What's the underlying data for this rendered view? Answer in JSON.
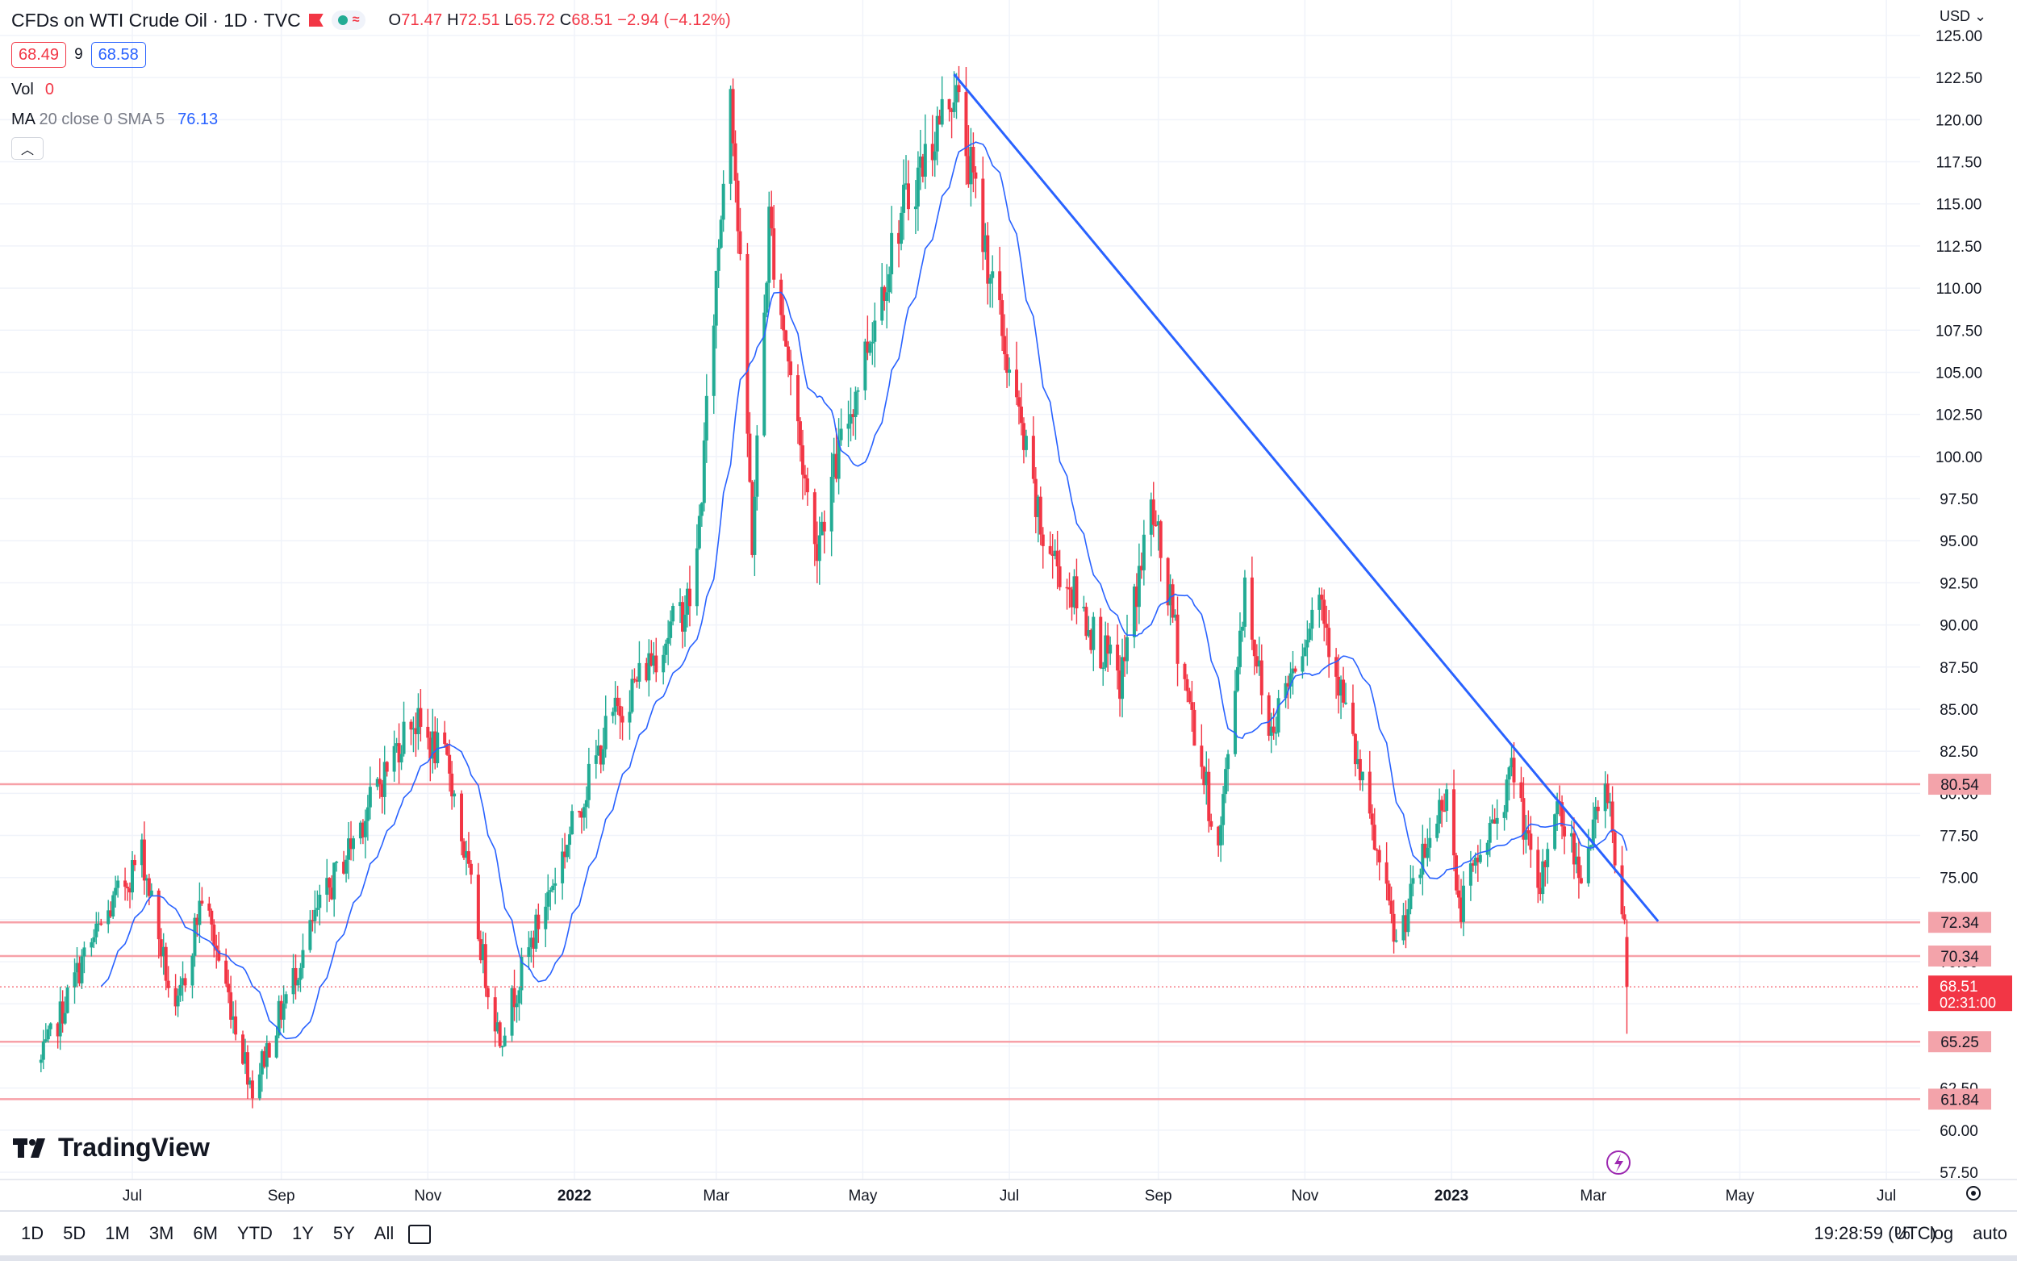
{
  "header": {
    "title": "CFDs on WTI Crude Oil · 1D · TVC",
    "ohlc": [
      {
        "label": "O",
        "value": "71.47"
      },
      {
        "label": "H",
        "value": "72.51"
      },
      {
        "label": "L",
        "value": "65.72"
      },
      {
        "label": "C",
        "value": "68.51"
      }
    ],
    "change": "−2.94 (−4.12%)",
    "bid": "68.49",
    "spread": "9",
    "ask": "68.58",
    "vol_label": "Vol",
    "vol_value": "0",
    "ma_label": "MA",
    "ma_params": "20 close 0 SMA 5",
    "ma_value": "76.13",
    "collapse_icon": "chevron-up-icon"
  },
  "currency": "USD",
  "logo_text": "TradingView",
  "timeframes": [
    "1D",
    "5D",
    "1M",
    "3M",
    "6M",
    "YTD",
    "1Y",
    "5Y",
    "All"
  ],
  "clock": "19:28:59 (UTC)",
  "right_tools": [
    "%",
    "log",
    "auto"
  ],
  "colors": {
    "up": "#22ab94",
    "down": "#f23645",
    "ma": "#2962ff",
    "trend": "#2962ff",
    "level": "#f7a1a8",
    "level_label": "#f3a3aa"
  },
  "chart_data": {
    "type": "candlestick",
    "symbol": "CFDs on WTI Crude Oil",
    "interval": "1D",
    "y_axis": {
      "unit": "USD",
      "min": 57.5,
      "max": 125,
      "step": 2.5,
      "ticks": [
        "57.50",
        "60.00",
        "62.50",
        "65.00",
        "67.50",
        "70.00",
        "72.50",
        "75.00",
        "77.50",
        "80.00",
        "82.50",
        "85.00",
        "87.50",
        "90.00",
        "92.50",
        "95.00",
        "97.50",
        "100.00",
        "102.50",
        "105.00",
        "107.50",
        "110.00",
        "112.50",
        "115.00",
        "117.50",
        "120.00",
        "122.50",
        "125.00"
      ]
    },
    "x_axis": {
      "labels": [
        {
          "label": "Jul",
          "date": "2021-07-01"
        },
        {
          "label": "Sep",
          "date": "2021-09-01"
        },
        {
          "label": "Nov",
          "date": "2021-11-01"
        },
        {
          "label": "2022",
          "date": "2022-01-01",
          "bold": true
        },
        {
          "label": "Mar",
          "date": "2022-03-01"
        },
        {
          "label": "May",
          "date": "2022-05-01"
        },
        {
          "label": "Jul",
          "date": "2022-07-01"
        },
        {
          "label": "Sep",
          "date": "2022-09-01"
        },
        {
          "label": "Nov",
          "date": "2022-11-01"
        },
        {
          "label": "2023",
          "date": "2023-01-01",
          "bold": true
        },
        {
          "label": "Mar",
          "date": "2023-03-01"
        },
        {
          "label": "May",
          "date": "2023-05-01"
        },
        {
          "label": "Jul",
          "date": "2023-07-01"
        }
      ]
    },
    "price_path": [
      [
        "2021-05-24",
        64.0
      ],
      [
        "2021-06-10",
        70.0
      ],
      [
        "2021-07-05",
        76.5
      ],
      [
        "2021-07-19",
        66.5
      ],
      [
        "2021-07-30",
        74.0
      ],
      [
        "2021-08-20",
        62.5
      ],
      [
        "2021-09-15",
        72.5
      ],
      [
        "2021-10-25",
        84.5
      ],
      [
        "2021-11-10",
        81.5
      ],
      [
        "2021-11-26",
        68.5
      ],
      [
        "2021-12-01",
        65.5
      ],
      [
        "2021-12-15",
        71.5
      ],
      [
        "2022-01-15",
        84.0
      ],
      [
        "2022-02-20",
        92.0
      ],
      [
        "2022-03-07",
        123.0
      ],
      [
        "2022-03-16",
        95.0
      ],
      [
        "2022-03-23",
        114.0
      ],
      [
        "2022-04-11",
        94.5
      ],
      [
        "2022-05-16",
        114.0
      ],
      [
        "2022-06-08",
        122.0
      ],
      [
        "2022-07-14",
        95.5
      ],
      [
        "2022-08-16",
        86.5
      ],
      [
        "2022-08-29",
        97.0
      ],
      [
        "2022-09-26",
        76.5
      ],
      [
        "2022-10-07",
        92.5
      ],
      [
        "2022-10-17",
        83.5
      ],
      [
        "2022-11-07",
        92.0
      ],
      [
        "2022-12-09",
        71.0
      ],
      [
        "2022-12-30",
        80.5
      ],
      [
        "2023-01-04",
        73.0
      ],
      [
        "2023-01-27",
        81.5
      ],
      [
        "2023-02-06",
        73.5
      ],
      [
        "2023-02-13",
        79.5
      ],
      [
        "2023-02-24",
        75.5
      ],
      [
        "2023-03-07",
        80.5
      ],
      [
        "2023-03-14",
        71.5
      ],
      [
        "2023-03-15",
        68.51
      ]
    ],
    "last_candle": {
      "date": "2023-03-15",
      "open": 71.47,
      "high": 72.51,
      "low": 65.72,
      "close": 68.51
    },
    "moving_average": {
      "type": "SMA",
      "length": 20,
      "source": "close",
      "offset": 0,
      "last_value": 76.13
    },
    "trend_line": {
      "start": {
        "date": "2022-06-08",
        "price": 122.7
      },
      "end": {
        "date": "2023-03-28",
        "price": 72.4
      }
    },
    "horizontal_levels": [
      80.54,
      72.34,
      70.34,
      65.25,
      61.84
    ],
    "price_label": {
      "price": "68.51",
      "countdown": "02:31:00"
    }
  }
}
